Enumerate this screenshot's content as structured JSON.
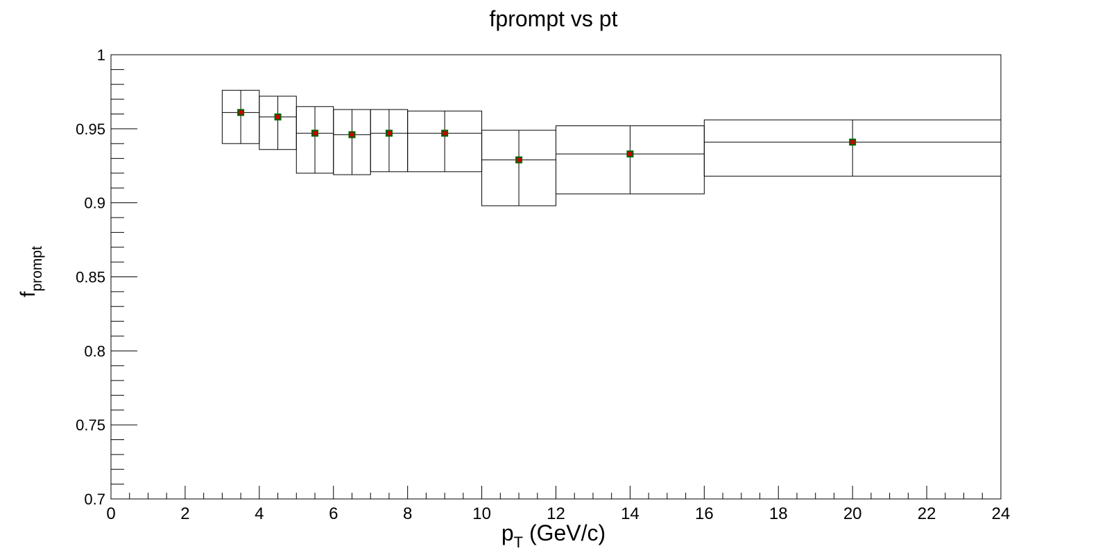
{
  "chart_data": {
    "type": "scatter",
    "title": "fprompt vs pt",
    "xlabel_main": "p",
    "xlabel_sub": "T",
    "xlabel_rest": " (GeV/c)",
    "ylabel_main": "f",
    "ylabel_sub": "prompt",
    "xlim": [
      0,
      24
    ],
    "ylim": [
      0.7,
      1.0
    ],
    "x_ticks": [
      0,
      2,
      4,
      6,
      8,
      10,
      12,
      14,
      16,
      18,
      20,
      22,
      24
    ],
    "x_tick_labels": [
      "0",
      "2",
      "4",
      "6",
      "8",
      "10",
      "12",
      "14",
      "16",
      "18",
      "20",
      "22",
      "24"
    ],
    "y_ticks": [
      0.7,
      0.75,
      0.8,
      0.85,
      0.9,
      0.95,
      1.0
    ],
    "y_tick_labels": [
      "0.7",
      "0.75",
      "0.8",
      "0.85",
      "0.9",
      "0.95",
      "1"
    ],
    "grid": false,
    "points": [
      {
        "x": 3.5,
        "x_low": 3,
        "x_high": 4,
        "y": 0.961,
        "y_low": 0.94,
        "y_high": 0.976
      },
      {
        "x": 4.5,
        "x_low": 4,
        "x_high": 5,
        "y": 0.958,
        "y_low": 0.936,
        "y_high": 0.972
      },
      {
        "x": 5.5,
        "x_low": 5,
        "x_high": 6,
        "y": 0.947,
        "y_low": 0.92,
        "y_high": 0.965
      },
      {
        "x": 6.5,
        "x_low": 6,
        "x_high": 7,
        "y": 0.946,
        "y_low": 0.919,
        "y_high": 0.963
      },
      {
        "x": 7.5,
        "x_low": 7,
        "x_high": 8,
        "y": 0.947,
        "y_low": 0.921,
        "y_high": 0.963
      },
      {
        "x": 9,
        "x_low": 8,
        "x_high": 10,
        "y": 0.947,
        "y_low": 0.921,
        "y_high": 0.962
      },
      {
        "x": 11,
        "x_low": 10,
        "x_high": 12,
        "y": 0.929,
        "y_low": 0.898,
        "y_high": 0.949
      },
      {
        "x": 14,
        "x_low": 12,
        "x_high": 16,
        "y": 0.933,
        "y_low": 0.906,
        "y_high": 0.952
      },
      {
        "x": 20,
        "x_low": 16,
        "x_high": 24,
        "y": 0.941,
        "y_low": 0.918,
        "y_high": 0.956
      }
    ],
    "colors": {
      "box_line": "#000000",
      "marker_fill": "#cc0000",
      "marker_edge": "#006600",
      "axis": "#000000"
    }
  }
}
